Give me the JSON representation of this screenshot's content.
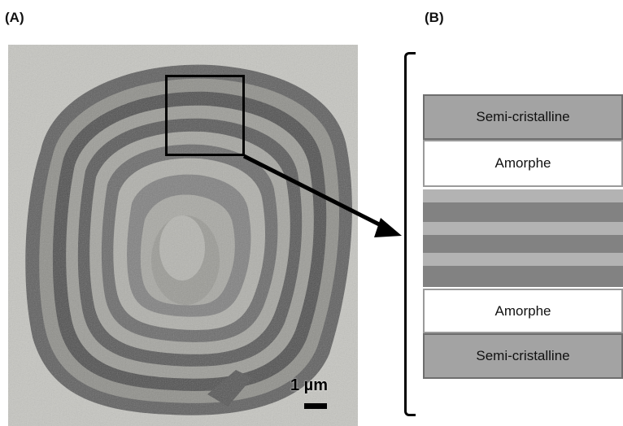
{
  "panel_a": {
    "label": "(A)",
    "scale_bar": "1 µm"
  },
  "panel_b": {
    "label": "(B)",
    "layers": [
      {
        "text": "Semi-cristalline",
        "type": "semi"
      },
      {
        "text": "Amorphe",
        "type": "amorph"
      },
      {
        "text": "",
        "type": "striped-region"
      },
      {
        "text": "Amorphe",
        "type": "amorph"
      },
      {
        "text": "Semi-cristalline",
        "type": "semi"
      }
    ]
  },
  "colors": {
    "semi_cristalline": "#a3a3a3",
    "amorphe": "#ffffff",
    "stripe_light": "#b3b3b3",
    "stripe_dark": "#828282"
  }
}
